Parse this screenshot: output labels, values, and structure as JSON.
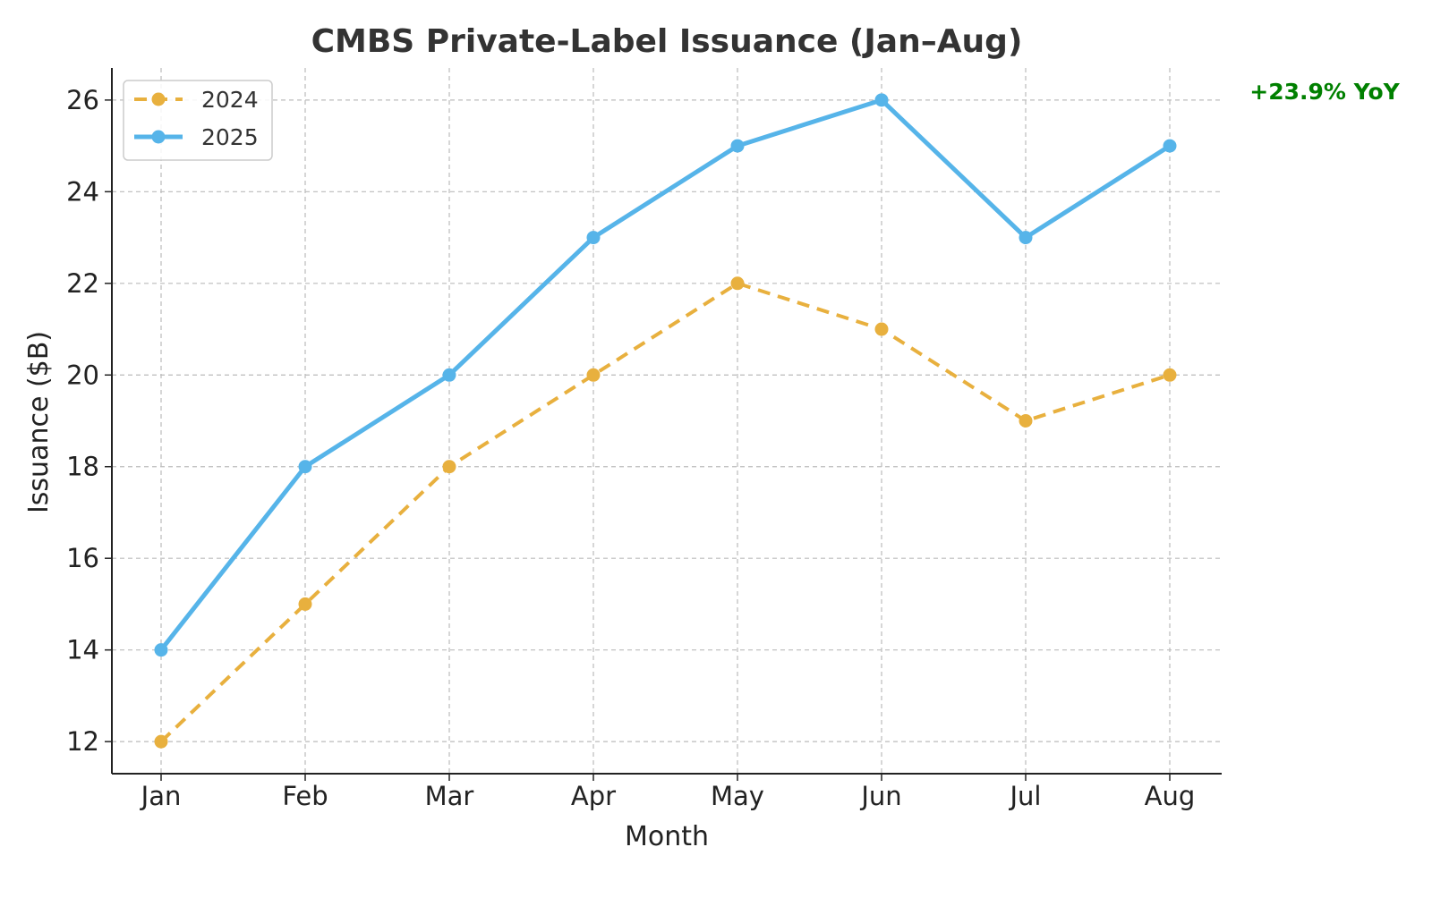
{
  "chart_data": {
    "type": "line",
    "title": "CMBS Private-Label Issuance (Jan–Aug)",
    "xlabel": "Month",
    "ylabel": "Issuance ($B)",
    "categories": [
      "Jan",
      "Feb",
      "Mar",
      "Apr",
      "May",
      "Jun",
      "Jul",
      "Aug"
    ],
    "ylim": [
      11.3,
      26.7
    ],
    "yticks": [
      12,
      14,
      16,
      18,
      20,
      22,
      24,
      26
    ],
    "grid": true,
    "legend_position": "top-left",
    "series": [
      {
        "name": "2024",
        "values": [
          12,
          15,
          18,
          20,
          22,
          21,
          19,
          20
        ],
        "color": "#E8B03E",
        "line_style": "dashed"
      },
      {
        "name": "2025",
        "values": [
          14,
          18,
          20,
          23,
          25,
          26,
          23,
          25
        ],
        "color": "#56B4E9",
        "line_style": "solid"
      }
    ],
    "annotation": {
      "text": "+23.9% YoY",
      "color": "#008000"
    }
  }
}
